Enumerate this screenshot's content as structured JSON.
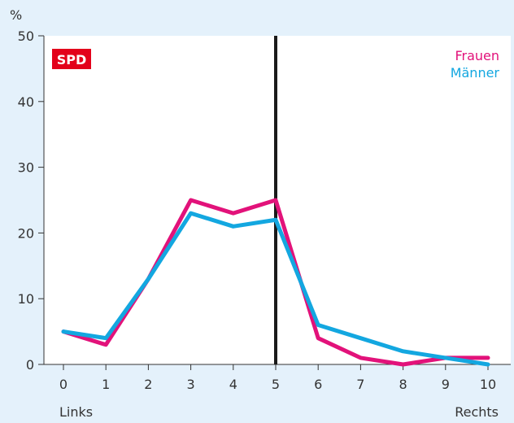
{
  "chart_data": {
    "type": "line",
    "x": [
      0,
      1,
      2,
      3,
      4,
      5,
      6,
      7,
      8,
      9,
      10
    ],
    "xlim": [
      0,
      10
    ],
    "ylim": [
      0,
      50
    ],
    "yticks": [
      0,
      10,
      20,
      30,
      40,
      50
    ],
    "ylabel": "%",
    "xlabel_left": "Links",
    "xlabel_right": "Rechts",
    "badge": "SPD",
    "marker_x": 5,
    "grid": false,
    "legend_position": "top-right",
    "series": [
      {
        "name": "Frauen",
        "color": "#e2127a",
        "values": [
          5,
          3,
          13,
          25,
          23,
          25,
          4,
          1,
          0,
          1,
          1
        ]
      },
      {
        "name": "Männer",
        "color": "#13a7e0",
        "values": [
          5,
          4,
          13,
          23,
          21,
          22,
          6,
          4,
          2,
          1,
          0
        ]
      }
    ],
    "colors": {
      "background": "#e4f1fb",
      "plot_background": "#ffffff",
      "badge": "#e3001b",
      "axis": "#333333",
      "marker": "#1a1a1a"
    }
  }
}
